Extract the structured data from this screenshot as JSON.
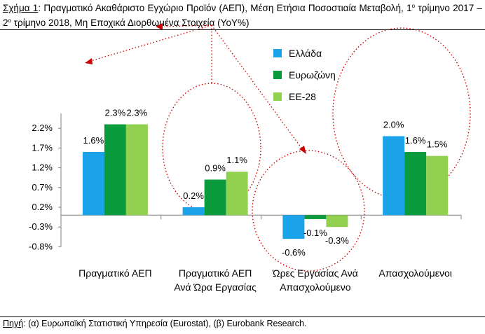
{
  "caption": {
    "label": "Σχήμα 1",
    "text_a": ": Πραγματικό Ακαθάριστο Εγχώριο Προϊόν (ΑΕΠ), Μέση Ετήσια Ποσοστιαία Μεταβολή, 1",
    "sup_a": "ο",
    "text_b": " τρίμηνο 2017 – 2",
    "sup_b": "ο",
    "text_c": " τρίμηνο 2018, Μη Εποχικά Διορθωμένα Στοιχεία (YoY%)"
  },
  "source": {
    "label": "Πηγή",
    "text": ": (α) Ευρωπαϊκή Στατιστική Υπηρεσία (Eurostat), (β) Eurobank Research."
  },
  "colors": {
    "Ελλάδα": "#1aa3e8",
    "Ευρωζώνη": "#0a9b3c",
    "ΕΕ-28": "#92d050",
    "annotation": "#cc0000",
    "gridline": "#bfbfbf"
  },
  "chart_data": {
    "type": "bar",
    "title": "",
    "xlabel": "",
    "ylabel": "",
    "ylim": [
      -0.8,
      2.4
    ],
    "yticks": [
      "2.2%",
      "1.7%",
      "1.2%",
      "0.7%",
      "0.2%",
      "-0.3%",
      "-0.8%"
    ],
    "ytick_values": [
      2.2,
      1.7,
      1.2,
      0.7,
      0.2,
      -0.3,
      -0.8
    ],
    "categories": [
      [
        "Πραγματικό ΑΕΠ"
      ],
      [
        "Πραγματικό ΑΕΠ",
        "Ανά Ώρα Εργασίας"
      ],
      [
        "Ώρες Εργασίας Ανά",
        "Απασχολούμενο"
      ],
      [
        "Απασχολούμενοι"
      ]
    ],
    "series": [
      {
        "name": "Ελλάδα",
        "values": [
          1.6,
          0.2,
          -0.6,
          2.0
        ],
        "labels": [
          "1.6%",
          "0.2%",
          "-0.6%",
          "2.0%"
        ]
      },
      {
        "name": "Ευρωζώνη",
        "values": [
          2.3,
          0.9,
          -0.1,
          1.6
        ],
        "labels": [
          "2.3%",
          "0.9%",
          "-0.1%",
          "1.6%"
        ]
      },
      {
        "name": "ΕΕ-28",
        "values": [
          2.3,
          1.1,
          -0.3,
          1.5
        ],
        "labels": [
          "2.3%",
          "1.1%",
          "-0.3%",
          "1.5%"
        ]
      }
    ],
    "legend_position": "top-right",
    "grid": false
  }
}
